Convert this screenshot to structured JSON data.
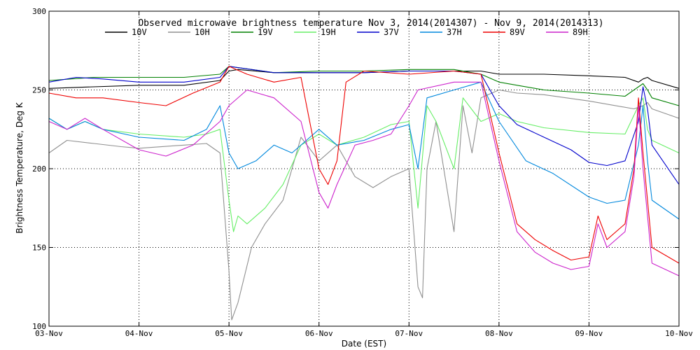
{
  "chart_data": {
    "type": "line",
    "title": "Observed microwave brightness temperature Nov  3, 2014(2014307) - Nov  9, 2014(2014313)",
    "xlabel": "Date (EST)",
    "ylabel": "Brightness Temperature, Deg K",
    "xlim": [
      0,
      7
    ],
    "ylim": [
      100,
      300
    ],
    "x_ticks": [
      {
        "x": 0,
        "label": "03-Nov"
      },
      {
        "x": 1,
        "label": "04-Nov"
      },
      {
        "x": 2,
        "label": "05-Nov"
      },
      {
        "x": 3,
        "label": "06-Nov"
      },
      {
        "x": 4,
        "label": "07-Nov"
      },
      {
        "x": 5,
        "label": "08-Nov"
      },
      {
        "x": 6,
        "label": "09-Nov"
      },
      {
        "x": 7,
        "label": "10-Nov"
      }
    ],
    "y_ticks": [
      100,
      150,
      200,
      250,
      300
    ],
    "grid": "dotted",
    "legend_position": "top",
    "series": [
      {
        "name": "10V",
        "color": "#000000",
        "points": [
          [
            0,
            251
          ],
          [
            0.5,
            252
          ],
          [
            1,
            253
          ],
          [
            1.5,
            253
          ],
          [
            1.9,
            256
          ],
          [
            2,
            262
          ],
          [
            2.1,
            263
          ],
          [
            2.5,
            261
          ],
          [
            3,
            261
          ],
          [
            3.5,
            261
          ],
          [
            4,
            262
          ],
          [
            4.5,
            262
          ],
          [
            4.8,
            262
          ],
          [
            5,
            260
          ],
          [
            5.5,
            260
          ],
          [
            6,
            259
          ],
          [
            6.4,
            258
          ],
          [
            6.55,
            255
          ],
          [
            6.6,
            257
          ],
          [
            6.65,
            258
          ],
          [
            6.7,
            256
          ],
          [
            7,
            251
          ]
        ]
      },
      {
        "name": "10H",
        "color": "#909090",
        "points": [
          [
            0,
            210
          ],
          [
            0.2,
            218
          ],
          [
            0.5,
            216
          ],
          [
            0.8,
            214
          ],
          [
            1,
            213
          ],
          [
            1.5,
            215
          ],
          [
            1.75,
            216
          ],
          [
            1.9,
            210
          ],
          [
            2,
            135
          ],
          [
            2.03,
            104
          ],
          [
            2.1,
            115
          ],
          [
            2.25,
            150
          ],
          [
            2.4,
            165
          ],
          [
            2.6,
            180
          ],
          [
            2.8,
            220
          ],
          [
            3,
            205
          ],
          [
            3.2,
            215
          ],
          [
            3.4,
            195
          ],
          [
            3.6,
            188
          ],
          [
            3.8,
            195
          ],
          [
            4,
            200
          ],
          [
            4.1,
            125
          ],
          [
            4.15,
            118
          ],
          [
            4.2,
            200
          ],
          [
            4.3,
            230
          ],
          [
            4.5,
            160
          ],
          [
            4.6,
            240
          ],
          [
            4.7,
            210
          ],
          [
            4.8,
            245
          ],
          [
            5,
            250
          ],
          [
            5.2,
            248
          ],
          [
            5.5,
            247
          ],
          [
            6,
            243
          ],
          [
            6.5,
            238
          ],
          [
            6.6,
            240
          ],
          [
            6.65,
            242
          ],
          [
            6.7,
            238
          ],
          [
            7,
            232
          ]
        ]
      },
      {
        "name": "19V",
        "color": "#008000",
        "points": [
          [
            0,
            256
          ],
          [
            0.5,
            258
          ],
          [
            1,
            258
          ],
          [
            1.5,
            258
          ],
          [
            1.9,
            260
          ],
          [
            2,
            265
          ],
          [
            2.5,
            261
          ],
          [
            3,
            262
          ],
          [
            3.5,
            262
          ],
          [
            4,
            263
          ],
          [
            4.5,
            263
          ],
          [
            4.8,
            260
          ],
          [
            5,
            255
          ],
          [
            5.5,
            250
          ],
          [
            6,
            248
          ],
          [
            6.4,
            246
          ],
          [
            6.55,
            252
          ],
          [
            6.6,
            254
          ],
          [
            6.65,
            250
          ],
          [
            6.7,
            245
          ],
          [
            7,
            240
          ]
        ]
      },
      {
        "name": "19H",
        "color": "#66ee66",
        "points": [
          [
            0,
            232
          ],
          [
            0.2,
            225
          ],
          [
            0.4,
            230
          ],
          [
            0.6,
            225
          ],
          [
            1,
            222
          ],
          [
            1.5,
            220
          ],
          [
            1.75,
            222
          ],
          [
            1.9,
            225
          ],
          [
            2,
            180
          ],
          [
            2.05,
            160
          ],
          [
            2.1,
            170
          ],
          [
            2.2,
            165
          ],
          [
            2.4,
            175
          ],
          [
            2.6,
            190
          ],
          [
            2.8,
            215
          ],
          [
            3,
            222
          ],
          [
            3.2,
            215
          ],
          [
            3.5,
            220
          ],
          [
            3.8,
            228
          ],
          [
            4,
            230
          ],
          [
            4.1,
            175
          ],
          [
            4.2,
            240
          ],
          [
            4.3,
            230
          ],
          [
            4.5,
            200
          ],
          [
            4.6,
            245
          ],
          [
            4.8,
            230
          ],
          [
            5,
            235
          ],
          [
            5.2,
            230
          ],
          [
            5.5,
            226
          ],
          [
            6,
            223
          ],
          [
            6.4,
            222
          ],
          [
            6.55,
            240
          ],
          [
            6.6,
            245
          ],
          [
            6.65,
            225
          ],
          [
            6.7,
            218
          ],
          [
            7,
            210
          ]
        ]
      },
      {
        "name": "37V",
        "color": "#0000cc",
        "points": [
          [
            0,
            255
          ],
          [
            0.3,
            258
          ],
          [
            0.6,
            257
          ],
          [
            1,
            255
          ],
          [
            1.5,
            255
          ],
          [
            1.9,
            258
          ],
          [
            2,
            265
          ],
          [
            2.5,
            261
          ],
          [
            3,
            261
          ],
          [
            3.5,
            261
          ],
          [
            4,
            262
          ],
          [
            4.5,
            262
          ],
          [
            4.8,
            260
          ],
          [
            5,
            240
          ],
          [
            5.2,
            228
          ],
          [
            5.5,
            220
          ],
          [
            5.8,
            212
          ],
          [
            6,
            204
          ],
          [
            6.2,
            202
          ],
          [
            6.4,
            205
          ],
          [
            6.55,
            230
          ],
          [
            6.6,
            252
          ],
          [
            6.65,
            238
          ],
          [
            6.7,
            215
          ],
          [
            7,
            190
          ]
        ]
      },
      {
        "name": "37H",
        "color": "#0088dd",
        "points": [
          [
            0,
            232
          ],
          [
            0.2,
            225
          ],
          [
            0.4,
            230
          ],
          [
            0.6,
            225
          ],
          [
            1,
            220
          ],
          [
            1.5,
            218
          ],
          [
            1.75,
            225
          ],
          [
            1.9,
            240
          ],
          [
            2,
            210
          ],
          [
            2.1,
            200
          ],
          [
            2.3,
            205
          ],
          [
            2.5,
            215
          ],
          [
            2.7,
            210
          ],
          [
            2.9,
            220
          ],
          [
            3,
            225
          ],
          [
            3.2,
            215
          ],
          [
            3.5,
            218
          ],
          [
            3.8,
            225
          ],
          [
            4,
            228
          ],
          [
            4.1,
            200
          ],
          [
            4.2,
            245
          ],
          [
            4.5,
            250
          ],
          [
            4.8,
            255
          ],
          [
            5,
            230
          ],
          [
            5.3,
            205
          ],
          [
            5.6,
            197
          ],
          [
            6,
            182
          ],
          [
            6.2,
            178
          ],
          [
            6.4,
            180
          ],
          [
            6.55,
            215
          ],
          [
            6.6,
            240
          ],
          [
            6.65,
            205
          ],
          [
            6.7,
            180
          ],
          [
            7,
            168
          ]
        ]
      },
      {
        "name": "89V",
        "color": "#ee0000",
        "points": [
          [
            0,
            248
          ],
          [
            0.3,
            245
          ],
          [
            0.6,
            245
          ],
          [
            1,
            242
          ],
          [
            1.3,
            240
          ],
          [
            1.6,
            248
          ],
          [
            1.9,
            255
          ],
          [
            2,
            265
          ],
          [
            2.2,
            260
          ],
          [
            2.5,
            255
          ],
          [
            2.8,
            258
          ],
          [
            3,
            200
          ],
          [
            3.1,
            190
          ],
          [
            3.2,
            205
          ],
          [
            3.3,
            255
          ],
          [
            3.5,
            262
          ],
          [
            4,
            260
          ],
          [
            4.5,
            262
          ],
          [
            4.8,
            260
          ],
          [
            5,
            210
          ],
          [
            5.2,
            165
          ],
          [
            5.4,
            155
          ],
          [
            5.6,
            148
          ],
          [
            5.8,
            142
          ],
          [
            6,
            144
          ],
          [
            6.1,
            170
          ],
          [
            6.2,
            155
          ],
          [
            6.4,
            165
          ],
          [
            6.5,
            200
          ],
          [
            6.55,
            245
          ],
          [
            6.6,
            210
          ],
          [
            6.7,
            150
          ],
          [
            7,
            140
          ]
        ]
      },
      {
        "name": "89H",
        "color": "#cc22cc",
        "points": [
          [
            0,
            230
          ],
          [
            0.2,
            225
          ],
          [
            0.4,
            232
          ],
          [
            0.6,
            225
          ],
          [
            1,
            212
          ],
          [
            1.3,
            208
          ],
          [
            1.6,
            215
          ],
          [
            1.9,
            230
          ],
          [
            2,
            240
          ],
          [
            2.2,
            250
          ],
          [
            2.5,
            245
          ],
          [
            2.8,
            230
          ],
          [
            3,
            185
          ],
          [
            3.1,
            175
          ],
          [
            3.2,
            190
          ],
          [
            3.4,
            215
          ],
          [
            3.6,
            218
          ],
          [
            3.8,
            222
          ],
          [
            4,
            240
          ],
          [
            4.1,
            250
          ],
          [
            4.5,
            255
          ],
          [
            4.8,
            255
          ],
          [
            5,
            205
          ],
          [
            5.2,
            160
          ],
          [
            5.4,
            147
          ],
          [
            5.6,
            140
          ],
          [
            5.8,
            136
          ],
          [
            6,
            138
          ],
          [
            6.1,
            165
          ],
          [
            6.2,
            150
          ],
          [
            6.4,
            160
          ],
          [
            6.5,
            195
          ],
          [
            6.55,
            240
          ],
          [
            6.6,
            200
          ],
          [
            6.7,
            140
          ],
          [
            7,
            132
          ]
        ]
      }
    ]
  }
}
